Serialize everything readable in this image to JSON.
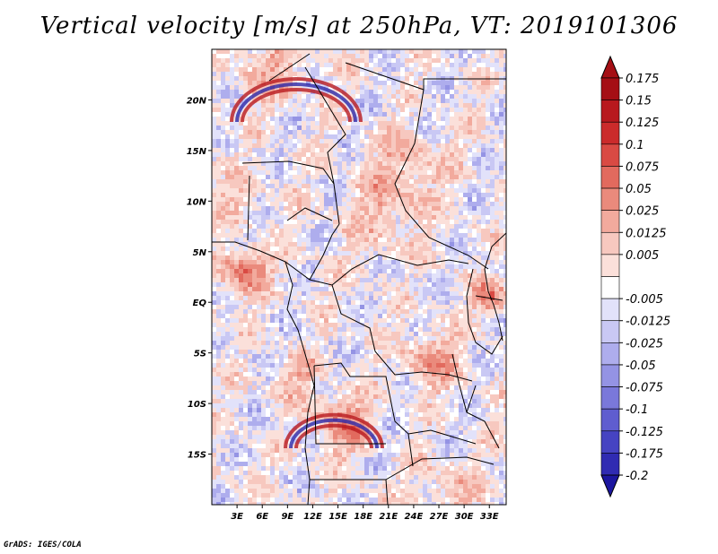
{
  "title": "Vertical velocity [m/s] at 250hPa, VT: 2019101306",
  "credit": "GrADS: IGES/COLA",
  "map": {
    "lon_range": [
      0,
      35
    ],
    "lat_range": [
      -20,
      25
    ],
    "lat_ticks": [
      {
        "value": 20,
        "label": "20N"
      },
      {
        "value": 15,
        "label": "15N"
      },
      {
        "value": 10,
        "label": "10N"
      },
      {
        "value": 5,
        "label": "5N"
      },
      {
        "value": 0,
        "label": "EQ"
      },
      {
        "value": -5,
        "label": "5S"
      },
      {
        "value": -10,
        "label": "10S"
      },
      {
        "value": -15,
        "label": "15S"
      }
    ],
    "lon_ticks": [
      {
        "value": 3,
        "label": "3E"
      },
      {
        "value": 6,
        "label": "6E"
      },
      {
        "value": 9,
        "label": "9E"
      },
      {
        "value": 12,
        "label": "12E"
      },
      {
        "value": 15,
        "label": "15E"
      },
      {
        "value": 18,
        "label": "18E"
      },
      {
        "value": 21,
        "label": "21E"
      },
      {
        "value": 24,
        "label": "24E"
      },
      {
        "value": 27,
        "label": "27E"
      },
      {
        "value": 30,
        "label": "30E"
      },
      {
        "value": 33,
        "label": "33E"
      }
    ]
  },
  "colorbar": {
    "levels": [
      {
        "label": "0.175",
        "color": "#a50f15"
      },
      {
        "label": "0.15",
        "color": "#b8191e"
      },
      {
        "label": "0.125",
        "color": "#cb2b2b"
      },
      {
        "label": "0.1",
        "color": "#d94a43"
      },
      {
        "label": "0.075",
        "color": "#e26a5e"
      },
      {
        "label": "0.05",
        "color": "#ea8a7c"
      },
      {
        "label": "0.025",
        "color": "#f2aa9d"
      },
      {
        "label": "0.0125",
        "color": "#f7c8bf"
      },
      {
        "label": "0.005",
        "color": "#fbe0da"
      },
      {
        "label": "",
        "color": "#ffffff"
      },
      {
        "label": "-0.005",
        "color": "#e2e2fa"
      },
      {
        "label": "-0.0125",
        "color": "#c9c8f4"
      },
      {
        "label": "-0.025",
        "color": "#aeaded"
      },
      {
        "label": "-0.05",
        "color": "#9493e4"
      },
      {
        "label": "-0.075",
        "color": "#7a78da"
      },
      {
        "label": "-0.1",
        "color": "#5f5dcf"
      },
      {
        "label": "-0.125",
        "color": "#4643c2"
      },
      {
        "label": "-0.175",
        "color": "#302bb2"
      },
      {
        "label": "-0.2",
        "color": "#1c169f"
      }
    ],
    "top_triangle_color": "#a50f15",
    "bottom_triangle_color": "#1c169f"
  }
}
